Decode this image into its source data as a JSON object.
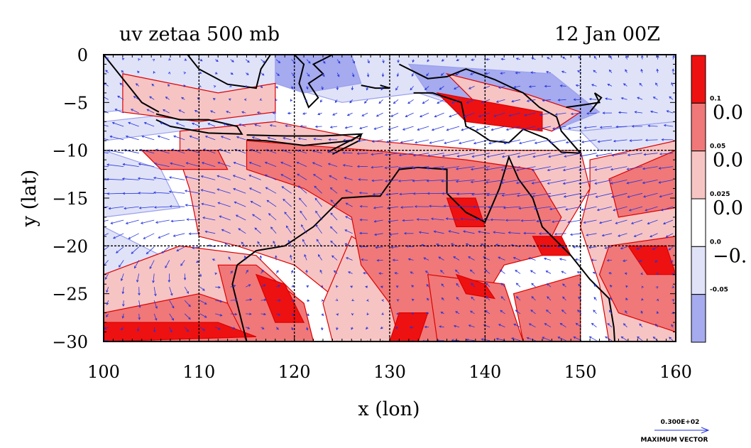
{
  "chart_data": {
    "type": "heatmap",
    "title": "uv zetaa 500 mb",
    "subtitle": "12 Jan 00Z",
    "xlabel": "x (lon)",
    "ylabel": "y (lat)",
    "xlim": [
      100,
      160
    ],
    "ylim": [
      -30,
      0
    ],
    "x_ticks": [
      "100",
      "110",
      "120",
      "130",
      "140",
      "150",
      "160"
    ],
    "y_ticks": [
      "0",
      "−5",
      "−10",
      "−15",
      "−20",
      "−25",
      "−30"
    ],
    "grid": true,
    "colorbar": {
      "levels": [
        "0.1",
        "0.05",
        "0.025",
        "0.0",
        "-0.05"
      ],
      "level_values": [
        0.1,
        0.05,
        0.025,
        0.0,
        -0.05
      ],
      "big_labels": [
        "0.0",
        "0.0",
        "0.0",
        "−0."
      ],
      "colors": [
        "#ee1111",
        "#f07878",
        "#f7c4c4",
        "#ffffff",
        "#e0e2f8",
        "#a6aaee"
      ]
    },
    "vector_legend": {
      "value": "0.300E+02",
      "label": "MAXIMUM VECTOR"
    },
    "colors": {
      "strong_positive": "#ee1111",
      "positive": "#f07878",
      "weak_positive": "#f7c4c4",
      "weak_negative": "#e0e2f8",
      "negative": "#a6aaee",
      "contour": "#dd0000",
      "vector": "#2233dd",
      "coast": "#000000"
    }
  }
}
